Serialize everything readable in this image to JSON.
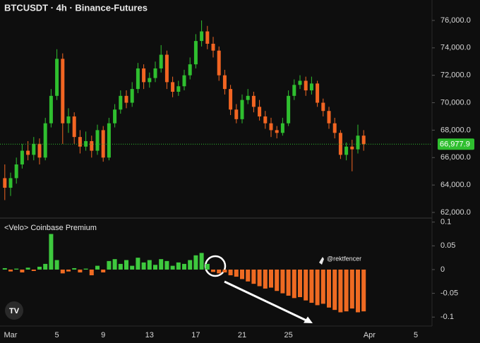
{
  "chart_data": [
    {
      "type": "candlestick",
      "title": "BTCUSDT · 4h · Binance-Futures",
      "categories": [
        null,
        null,
        "Mar",
        null,
        null,
        null,
        null,
        null,
        null,
        null,
        "5",
        null,
        null,
        null,
        null,
        null,
        null,
        null,
        "9",
        null,
        null,
        null,
        null,
        null,
        null,
        null,
        "13",
        null,
        null,
        null,
        null,
        null,
        null,
        null,
        "17",
        null,
        null,
        null,
        null,
        null,
        null,
        null,
        "21",
        null,
        null,
        null,
        null,
        null,
        null,
        null,
        "25",
        null,
        null,
        null,
        null,
        null,
        null,
        null,
        null,
        null,
        null,
        null,
        null,
        null,
        "Apr",
        null,
        null,
        null,
        null,
        null,
        null,
        null,
        "5",
        null
      ],
      "open": [
        null,
        64500,
        63800,
        64500,
        65500,
        66500,
        66200,
        67000,
        66000,
        68500,
        70500,
        73200,
        68500,
        69000,
        67500,
        66800,
        67200,
        66500,
        68000,
        66000,
        68500,
        69500,
        70500,
        70000,
        71000,
        72500,
        71500,
        71800,
        72500,
        73500,
        71500,
        70800,
        71200,
        72000,
        72800,
        74500,
        75200,
        74300,
        73800,
        72000,
        71000,
        69500,
        68800,
        70200,
        70500,
        69700,
        69000,
        68500,
        68000,
        67800,
        68500,
        70500,
        71300,
        71600,
        70900,
        71400,
        70000,
        69400,
        68500,
        67800,
        66200,
        66800,
        66600,
        67600,
        null,
        null,
        null,
        null,
        null,
        null,
        null,
        null,
        null,
        null
      ],
      "high": [
        null,
        65500,
        64900,
        66000,
        67000,
        67200,
        67500,
        67400,
        68900,
        71000,
        73900,
        73600,
        69600,
        69300,
        68000,
        67900,
        67600,
        68400,
        68300,
        68900,
        69900,
        70900,
        70900,
        71500,
        72900,
        72800,
        72200,
        73000,
        74200,
        73800,
        71900,
        71600,
        72400,
        73300,
        75000,
        76000,
        75600,
        74800,
        74100,
        72400,
        71300,
        69900,
        70600,
        71000,
        70800,
        70200,
        69400,
        68900,
        68300,
        68900,
        70900,
        71700,
        72000,
        71900,
        71900,
        71600,
        70300,
        69700,
        68900,
        68000,
        67100,
        67300,
        68400,
        68000,
        null,
        null,
        null,
        null,
        null,
        null,
        null,
        null,
        null,
        null
      ],
      "low": [
        null,
        62900,
        63200,
        64100,
        65200,
        65800,
        65800,
        65500,
        65800,
        68200,
        70200,
        67000,
        67800,
        67000,
        66300,
        66500,
        66000,
        66200,
        65700,
        65800,
        68200,
        69200,
        69600,
        69700,
        70700,
        71000,
        71100,
        71500,
        72200,
        71000,
        70400,
        70500,
        70900,
        71700,
        72500,
        74100,
        73900,
        73300,
        71600,
        70600,
        69100,
        68500,
        68500,
        69900,
        69300,
        68700,
        68100,
        67500,
        67400,
        67600,
        68300,
        70200,
        71000,
        70500,
        70600,
        69700,
        69000,
        68100,
        67400,
        65900,
        65800,
        65000,
        66300,
        66500,
        null,
        null,
        null,
        null,
        null,
        null,
        null,
        null,
        null,
        null
      ],
      "close": [
        null,
        63800,
        64500,
        65500,
        66500,
        66200,
        67000,
        66000,
        68500,
        70500,
        73200,
        68500,
        69000,
        67500,
        66800,
        67200,
        66500,
        68000,
        66000,
        68500,
        69500,
        70500,
        70000,
        71000,
        72500,
        71500,
        71800,
        72500,
        73500,
        71500,
        70800,
        71200,
        72000,
        72800,
        74500,
        75200,
        74300,
        73800,
        72000,
        71000,
        69500,
        68800,
        70200,
        70500,
        69700,
        69000,
        68500,
        68000,
        67800,
        68500,
        70500,
        71300,
        71600,
        70900,
        71400,
        70000,
        69400,
        68500,
        67800,
        66200,
        66800,
        66600,
        67600,
        66977.9,
        null,
        null,
        null,
        null,
        null,
        null,
        null,
        null,
        null,
        null
      ],
      "up_color": "#2fbf2f",
      "down_color": "#f26522",
      "price_line": {
        "value": 66977.9,
        "label": "66,977.9"
      },
      "ylim": [
        61640,
        77490
      ],
      "yticks": [
        {
          "value": 62000,
          "label": "62,000.0"
        },
        {
          "value": 64000,
          "label": "64,000.0"
        },
        {
          "value": 66000,
          "label": "66,000.0"
        },
        {
          "value": 68000,
          "label": "68,000.0"
        },
        {
          "value": 70000,
          "label": "70,000.0"
        },
        {
          "value": 72000,
          "label": "72,000.0"
        },
        {
          "value": 74000,
          "label": "74,000.0"
        },
        {
          "value": 76000,
          "label": "76,000.0"
        }
      ]
    },
    {
      "type": "bar",
      "title": "<Velo> Coinbase Premium",
      "annotation": "@rektfencer",
      "values": [
        null,
        0.003,
        -0.004,
        0.002,
        -0.006,
        0.004,
        -0.003,
        0.006,
        0.012,
        0.075,
        0.02,
        -0.008,
        -0.004,
        0.003,
        -0.006,
        0.002,
        -0.012,
        0.008,
        -0.006,
        0.018,
        0.022,
        0.012,
        0.02,
        0.008,
        0.025,
        0.015,
        0.02,
        0.01,
        0.022,
        0.018,
        0.008,
        0.015,
        0.012,
        0.02,
        0.03,
        0.035,
        0.012,
        -0.005,
        -0.008,
        -0.006,
        -0.012,
        -0.015,
        -0.02,
        -0.025,
        -0.03,
        -0.035,
        -0.04,
        -0.038,
        -0.045,
        -0.05,
        -0.055,
        -0.06,
        -0.058,
        -0.065,
        -0.07,
        -0.075,
        -0.072,
        -0.08,
        -0.085,
        -0.09,
        -0.088,
        -0.082,
        -0.09,
        -0.088,
        null,
        null,
        null,
        null,
        null,
        null,
        null,
        null,
        null,
        null
      ],
      "positive_color": "#3ec93e",
      "negative_color": "#ee6a22",
      "ylim": [
        -0.116,
        0.107
      ],
      "yticks": [
        0.1,
        0.05,
        0,
        -0.05,
        -0.1
      ]
    }
  ]
}
